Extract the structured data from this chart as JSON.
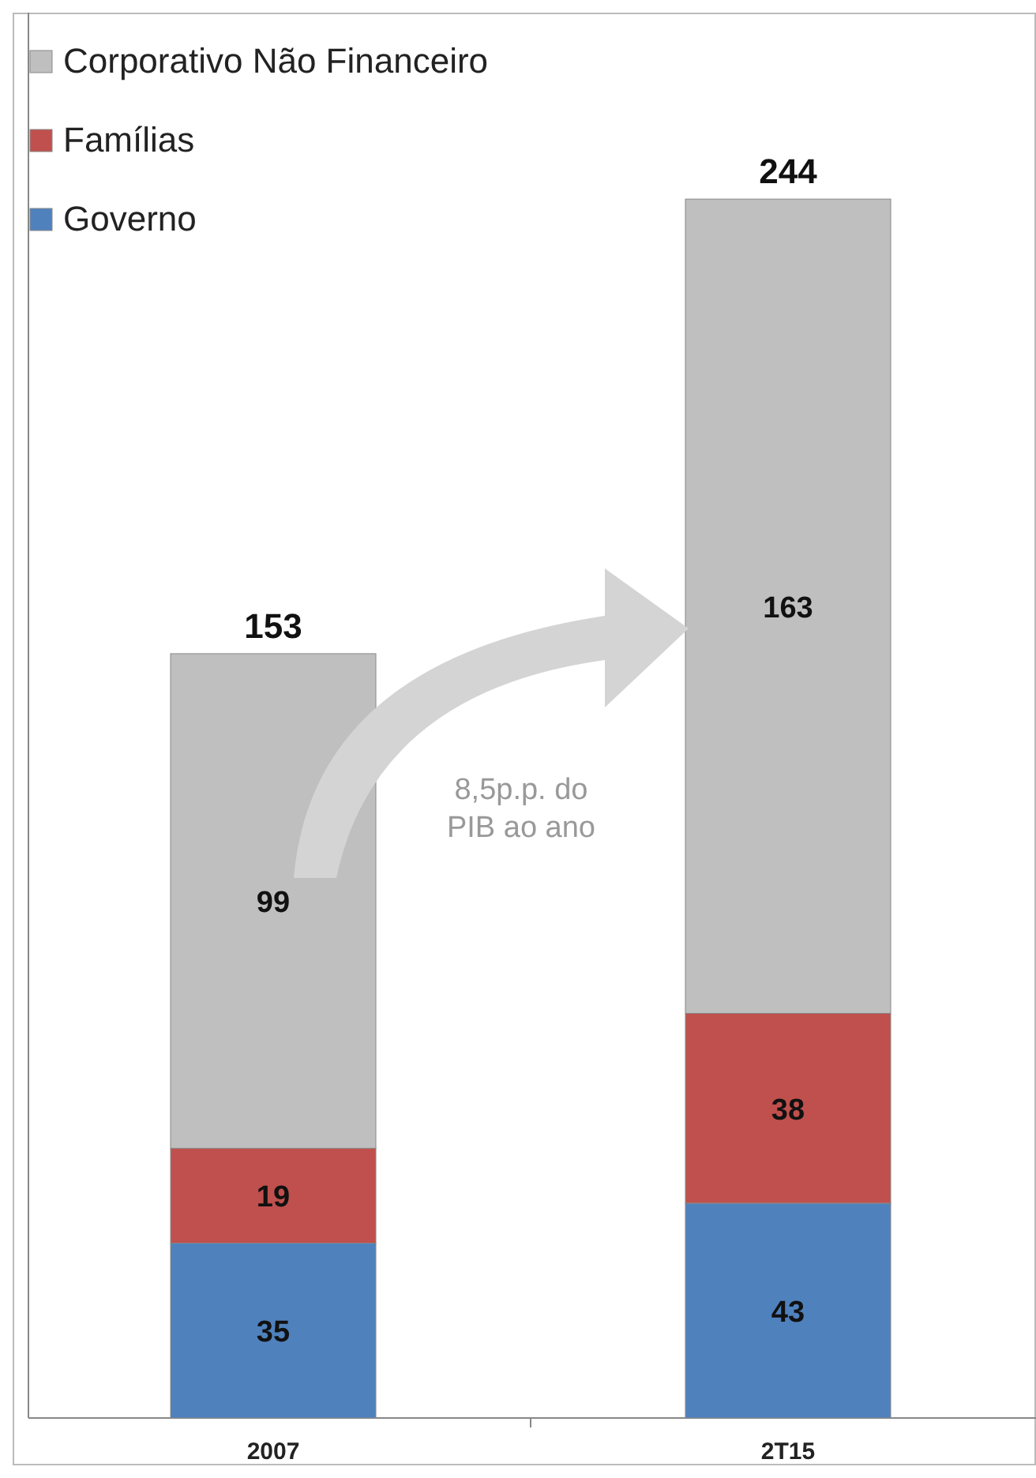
{
  "chart_data": {
    "type": "bar",
    "stacked": true,
    "categories": [
      "2007",
      "2T15"
    ],
    "series": [
      {
        "name": "Governo",
        "color": "#4f81bd",
        "values": [
          35,
          43
        ]
      },
      {
        "name": "Famílias",
        "color": "#c0504d",
        "values": [
          19,
          38
        ]
      },
      {
        "name": "Corporativo Não Financeiro",
        "color": "#bfbfbf",
        "values": [
          99,
          163
        ]
      }
    ],
    "totals": [
      "153",
      "244"
    ],
    "data_labels": true,
    "legend": "top left",
    "annotations": [
      "8,5p.p. do PIB ao ano"
    ]
  }
}
